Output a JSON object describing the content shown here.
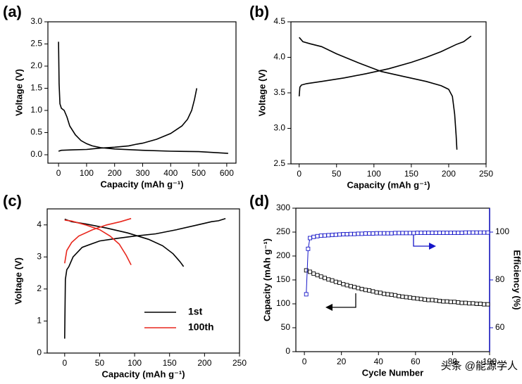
{
  "chart_data": [
    {
      "type": "line",
      "label": "(a)",
      "xlabel": "Capacity (mAh g⁻¹)",
      "ylabel": "Voltage (V)",
      "xlim": [
        -38,
        633
      ],
      "xticks": [
        0,
        100,
        200,
        300,
        400,
        500,
        600
      ],
      "ylim": [
        -0.19,
        3.0
      ],
      "yticks": [
        {
          "value": 0,
          "label": "0.0"
        },
        0.5,
        {
          "value": 1,
          "label": "1.0"
        },
        1.5,
        {
          "value": 2,
          "label": "2.0"
        },
        2.5,
        {
          "value": 3,
          "label": "3.0"
        }
      ],
      "series": [
        {
          "color": "#000000",
          "x": [
            0,
            2,
            5,
            10,
            20,
            30,
            40,
            60,
            80,
            100,
            120,
            150,
            200,
            300,
            400,
            500,
            605,
            null,
            0,
            10,
            50,
            100,
            150,
            200,
            250,
            280,
            300,
            350,
            400,
            440,
            460,
            475,
            485,
            493
          ],
          "values": [
            2.55,
            1.6,
            1.15,
            1.05,
            1.0,
            0.85,
            0.65,
            0.45,
            0.32,
            0.25,
            0.2,
            0.16,
            0.13,
            0.1,
            0.08,
            0.07,
            0.03,
            null,
            0.08,
            0.1,
            0.11,
            0.12,
            0.15,
            0.17,
            0.2,
            0.24,
            0.26,
            0.35,
            0.48,
            0.65,
            0.8,
            1.0,
            1.25,
            1.5
          ]
        }
      ]
    },
    {
      "type": "line",
      "label": "(b)",
      "xlabel": "Capacity (mAh g⁻¹)",
      "ylabel": "Voltage (V)",
      "xlim": [
        -11,
        250
      ],
      "xticks": [
        0,
        50,
        100,
        150,
        200,
        250
      ],
      "ylim": [
        2.5,
        4.5
      ],
      "yticks": [
        2.5,
        {
          "value": 3,
          "label": "3.0"
        },
        3.5,
        {
          "value": 4,
          "label": "4.0"
        },
        4.5
      ],
      "series": [
        {
          "color": "#000000",
          "x": [
            0,
            5,
            15,
            30,
            50,
            80,
            110,
            140,
            170,
            190,
            200,
            205,
            208,
            210,
            211,
            null,
            0,
            1,
            3,
            10,
            30,
            60,
            90,
            120,
            150,
            170,
            190,
            210,
            220,
            230
          ],
          "values": [
            4.28,
            4.22,
            4.19,
            4.15,
            4.05,
            3.92,
            3.8,
            3.73,
            3.66,
            3.6,
            3.55,
            3.45,
            3.2,
            2.9,
            2.7,
            null,
            3.45,
            3.58,
            3.61,
            3.63,
            3.66,
            3.71,
            3.77,
            3.84,
            3.93,
            4.0,
            4.08,
            4.18,
            4.22,
            4.3
          ]
        }
      ]
    },
    {
      "type": "line",
      "label": "(c)",
      "xlabel": "Capacity (mAh g⁻¹)",
      "ylabel": "Voltage (V)",
      "xlim": [
        -25,
        250
      ],
      "xticks": [
        0,
        50,
        100,
        150,
        200,
        250
      ],
      "ylim": [
        0,
        4.5
      ],
      "yticks": [
        0,
        1,
        2,
        3,
        4
      ],
      "legend": "lower right",
      "series": [
        {
          "name": "1st",
          "color": "#000000",
          "x": [
            0,
            1,
            3,
            6,
            12,
            25,
            50,
            75,
            100,
            130,
            160,
            190,
            210,
            220,
            230,
            null,
            0,
            10,
            30,
            60,
            90,
            120,
            140,
            155,
            165,
            170
          ],
          "values": [
            0.45,
            2.3,
            2.6,
            2.7,
            3.0,
            3.3,
            3.5,
            3.58,
            3.65,
            3.72,
            3.85,
            4.0,
            4.1,
            4.13,
            4.2,
            null,
            4.18,
            4.1,
            4.03,
            3.9,
            3.75,
            3.55,
            3.35,
            3.1,
            2.85,
            2.7
          ]
        },
        {
          "name": "100th",
          "color": "#e8271d",
          "x": [
            0,
            3,
            10,
            20,
            40,
            60,
            80,
            95,
            null,
            0,
            10,
            30,
            50,
            65,
            78,
            88,
            95
          ],
          "values": [
            2.8,
            3.2,
            3.45,
            3.65,
            3.85,
            4.0,
            4.1,
            4.2,
            null,
            4.15,
            4.12,
            4.0,
            3.85,
            3.65,
            3.4,
            3.05,
            2.75
          ]
        }
      ]
    },
    {
      "type": "line",
      "label": "(d)",
      "xlabel": "Cycle Number",
      "ylabel": "Capacity (mAh g⁻¹)",
      "y2label": "Efficiency (%)",
      "xlim": [
        -4.6,
        100
      ],
      "xticks": [
        0,
        20,
        40,
        60,
        80,
        100
      ],
      "ylim": [
        0,
        300
      ],
      "yticks": [
        0,
        50,
        100,
        150,
        200,
        250,
        300
      ],
      "y2lim": [
        50,
        110
      ],
      "y2ticks": [
        60,
        80,
        100
      ],
      "y2color": "#1515c8",
      "series": [
        {
          "color": "#000000",
          "marker": "square",
          "x": [
            1,
            3,
            5,
            7,
            9,
            11,
            13,
            15,
            17,
            19,
            21,
            23,
            25,
            27,
            29,
            31,
            33,
            35,
            37,
            39,
            41,
            43,
            45,
            47,
            49,
            51,
            53,
            55,
            57,
            59,
            61,
            63,
            65,
            67,
            69,
            71,
            73,
            75,
            77,
            79,
            81,
            83,
            85,
            87,
            89,
            91,
            93,
            95,
            97,
            99
          ],
          "values": [
            170,
            167,
            163,
            160,
            157,
            154,
            151,
            149,
            146,
            144,
            141,
            139,
            137,
            135,
            133,
            131,
            129,
            128,
            126,
            124,
            123,
            121,
            120,
            119,
            118,
            116,
            115,
            114,
            113,
            112,
            111,
            110,
            109,
            108,
            108,
            107,
            106,
            105,
            105,
            104,
            104,
            103,
            102,
            102,
            101,
            101,
            100,
            100,
            99,
            99
          ]
        },
        {
          "color": "#1515c8",
          "marker": "square",
          "line": true,
          "axis": "y2",
          "x": [
            1,
            2,
            3,
            5,
            7,
            9,
            11,
            13,
            15,
            17,
            19,
            21,
            23,
            25,
            27,
            29,
            31,
            33,
            35,
            37,
            39,
            41,
            43,
            45,
            47,
            49,
            51,
            53,
            55,
            57,
            59,
            61,
            63,
            65,
            67,
            69,
            71,
            73,
            75,
            77,
            79,
            81,
            83,
            85,
            87,
            89,
            91,
            93,
            95,
            97,
            99
          ],
          "values": [
            74,
            93,
            97.5,
            98,
            98.3,
            98.5,
            98.6,
            98.7,
            98.8,
            98.9,
            99,
            99.1,
            99.1,
            99.2,
            99.2,
            99.3,
            99.3,
            99.4,
            99.4,
            99.4,
            99.5,
            99.5,
            99.5,
            99.5,
            99.5,
            99.6,
            99.6,
            99.6,
            99.6,
            99.6,
            99.6,
            99.7,
            99.7,
            99.7,
            99.7,
            99.7,
            99.7,
            99.7,
            99.7,
            99.7,
            99.7,
            99.7,
            99.7,
            99.7,
            99.8,
            99.8,
            99.8,
            99.8,
            99.8,
            99.8,
            99.8
          ]
        }
      ]
    }
  ],
  "watermark": "头条 @能源学人"
}
